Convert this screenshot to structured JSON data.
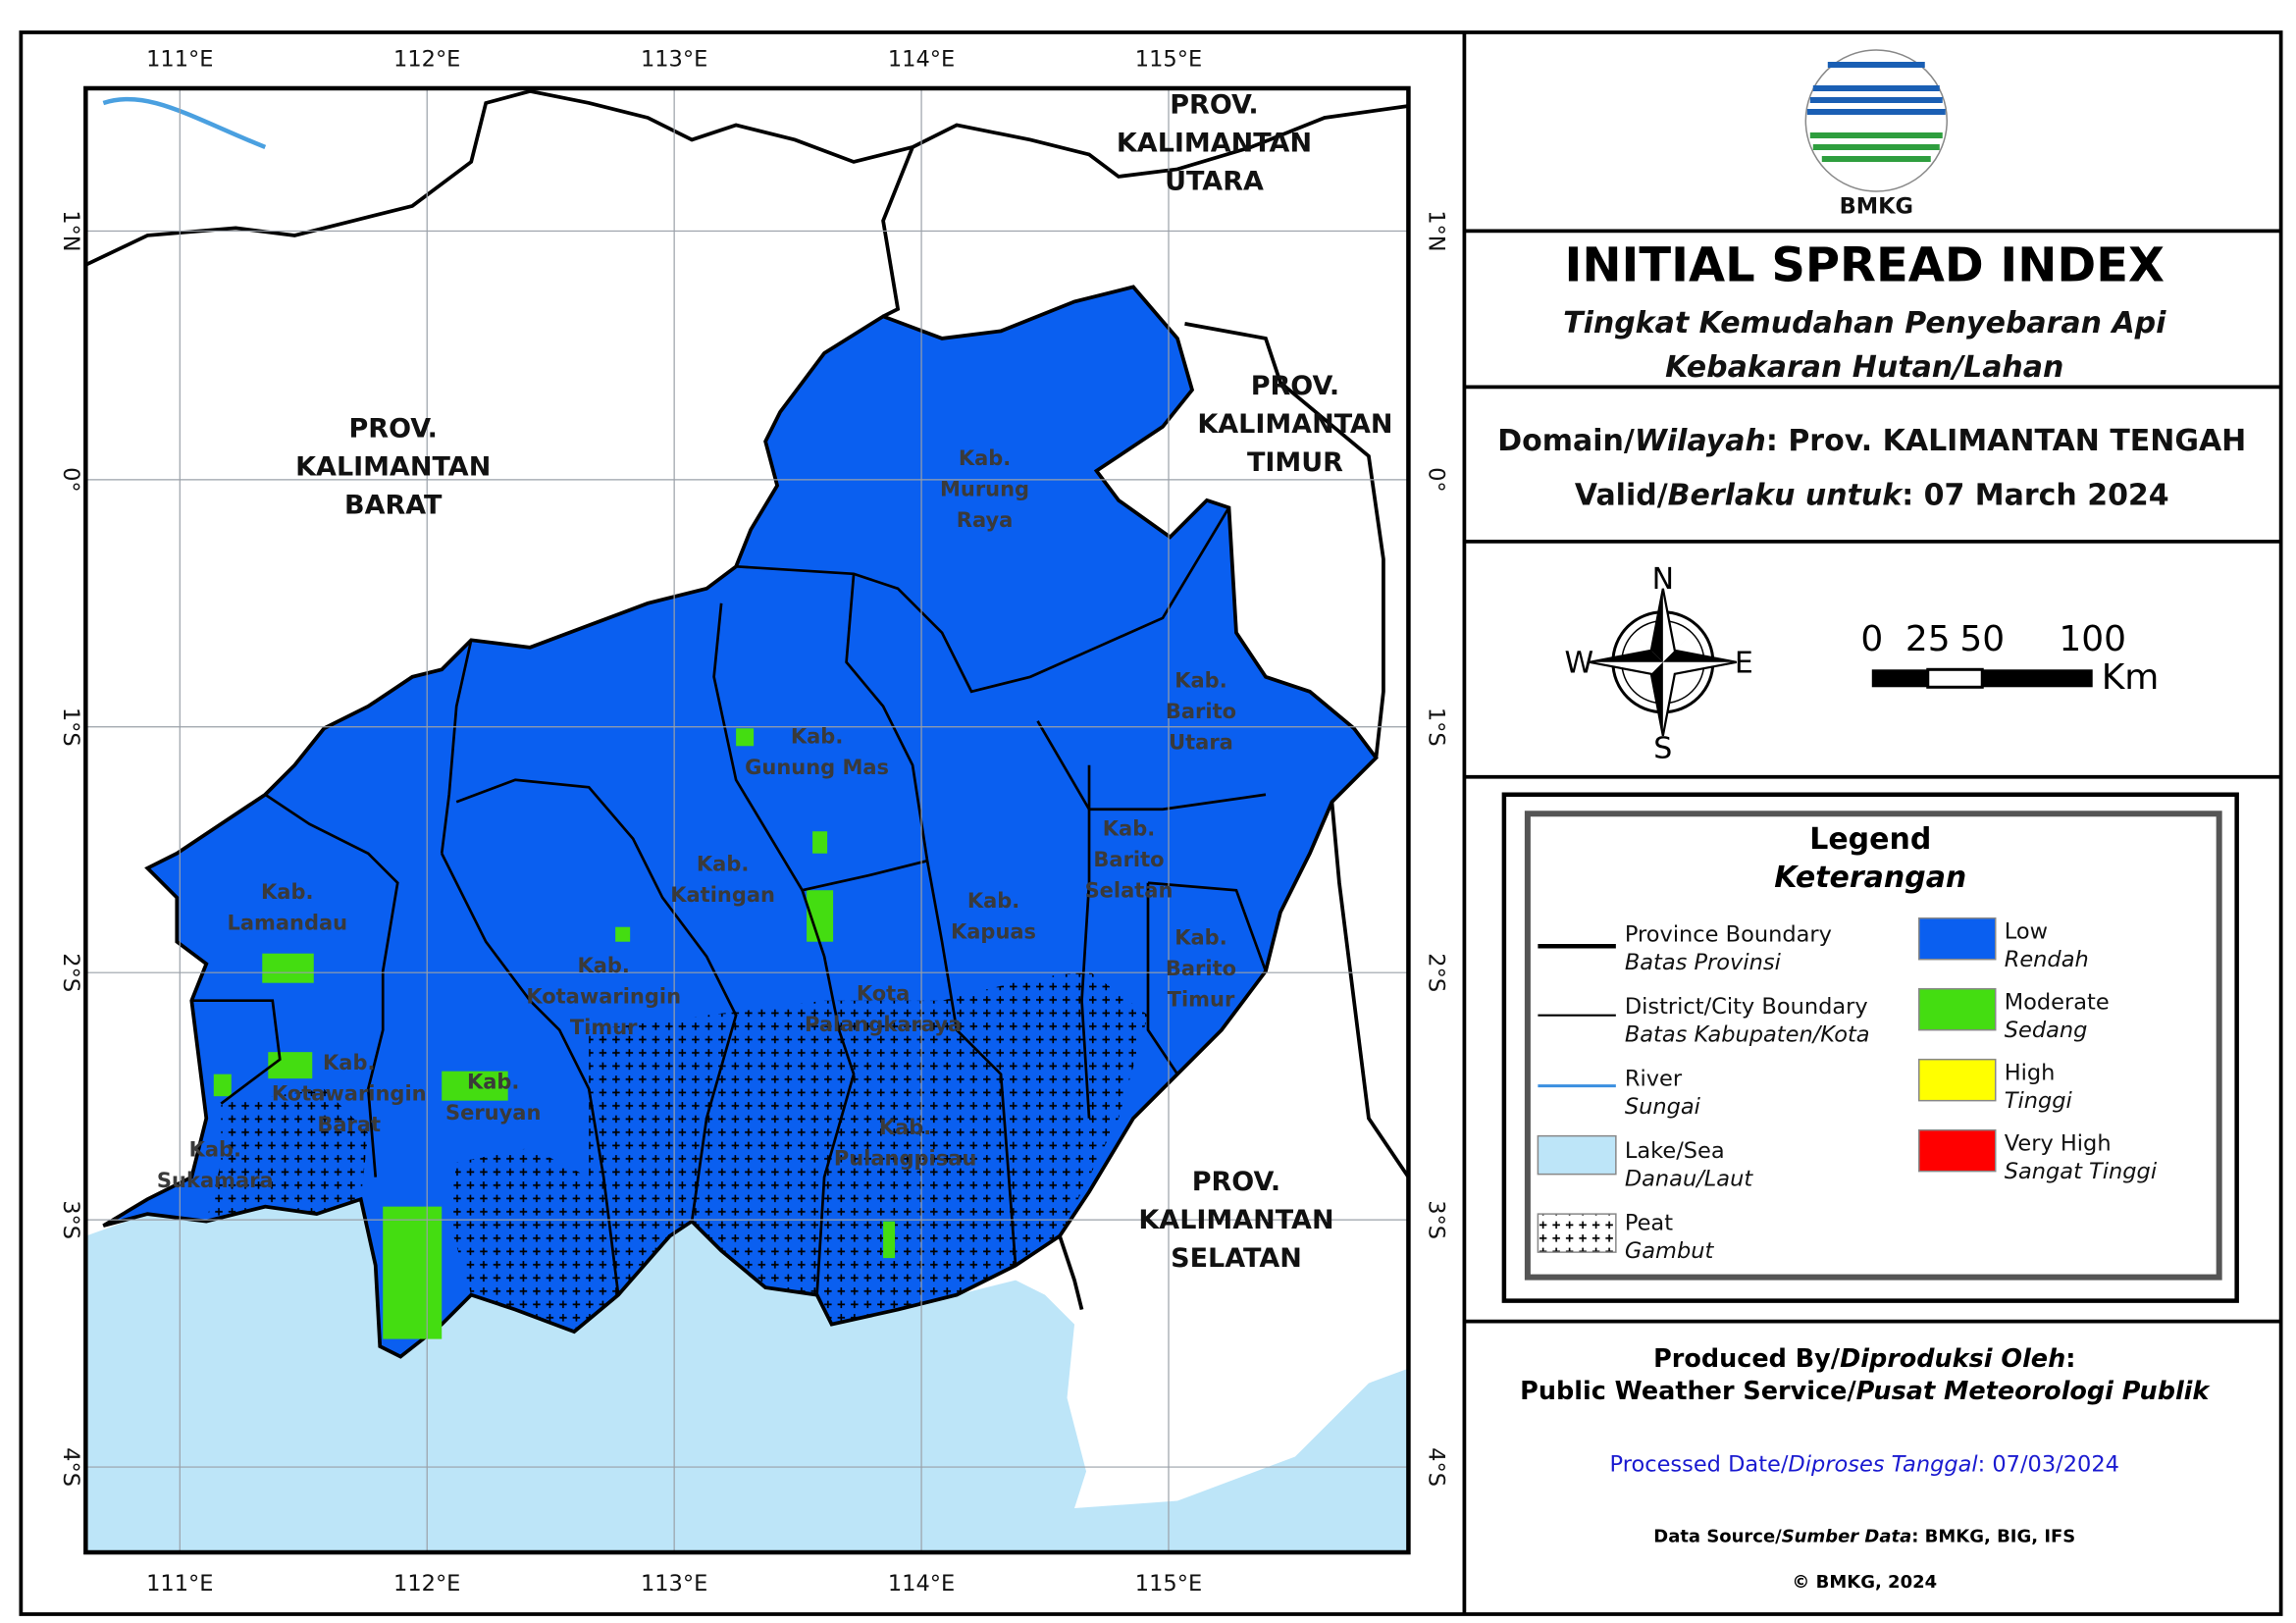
{
  "map": {
    "lon_labels": [
      "111°E",
      "112°E",
      "113°E",
      "114°E",
      "115°E"
    ],
    "lat_labels": [
      "1°N",
      "0°",
      "1°S",
      "2°S",
      "3°S",
      "4°S"
    ],
    "provinces": [
      [
        "PROV.",
        "KALIMANTAN",
        "UTARA"
      ],
      [
        "PROV.",
        "KALIMANTAN",
        "BARAT"
      ],
      [
        "PROV.",
        "KALIMANTAN",
        "TIMUR"
      ],
      [
        "PROV.",
        "KALIMANTAN",
        "SELATAN"
      ]
    ],
    "districts": [
      [
        "Kab.",
        "Murung",
        "Raya"
      ],
      [
        "Kab.",
        "Gunung Mas"
      ],
      [
        "Kab.",
        "Barito",
        "Utara"
      ],
      [
        "Kab.",
        "Lamandau"
      ],
      [
        "Kab.",
        "Katingan"
      ],
      [
        "Kab.",
        "Kapuas"
      ],
      [
        "Kab.",
        "Barito",
        "Selatan"
      ],
      [
        "Kab.",
        "Barito",
        "Timur"
      ],
      [
        "Kab.",
        "Kotawaringin",
        "Timur"
      ],
      [
        "Kota",
        "Palangkaraya"
      ],
      [
        "Kab.",
        "Kotawaringin",
        "Barat"
      ],
      [
        "Kab.",
        "Seruyan"
      ],
      [
        "Kab.",
        "Sukamara"
      ],
      [
        "Kab.",
        "Pulangpisau"
      ]
    ]
  },
  "header": {
    "logo_text": "BMKG",
    "title": "INITIAL SPREAD INDEX",
    "subtitle": [
      "Tingkat Kemudahan Penyebaran Api",
      "Kebakaran Hutan/Lahan"
    ]
  },
  "info": {
    "domain": [
      "Domain/",
      "Wilayah",
      ": Prov. KALIMANTAN TENGAH"
    ],
    "valid": [
      "Valid/",
      "Berlaku untuk",
      ": 07 March 2024"
    ]
  },
  "compass": {
    "n": "N",
    "s": "S",
    "e": "E",
    "w": "W"
  },
  "scale_bar": {
    "labels": [
      "0",
      "25",
      "50",
      "100"
    ],
    "unit": "Km"
  },
  "legend": {
    "title": "Legend",
    "subtitle": "Keterangan",
    "items": [
      {
        "label": "Province Boundary",
        "label_id": "Batas Provinsi"
      },
      {
        "label": "District/City Boundary",
        "label_id": "Batas Kabupaten/Kota"
      },
      {
        "label": "River",
        "label_id": "Sungai"
      },
      {
        "label": "Lake/Sea",
        "label_id": "Danau/Laut"
      },
      {
        "label": "Peat",
        "label_id": "Gambut"
      },
      {
        "label": "Low",
        "label_id": "Rendah",
        "color": "#0a5ff0"
      },
      {
        "label": "Moderate",
        "label_id": "Sedang",
        "color": "#44dd11"
      },
      {
        "label": "High",
        "label_id": "Tinggi",
        "color": "#ffff00"
      },
      {
        "label": "Very High",
        "label_id": "Sangat Tinggi",
        "color": "#ff0000"
      }
    ]
  },
  "footer": {
    "produced": [
      "Produced By/",
      "Diproduksi Oleh",
      ":"
    ],
    "service": [
      "Public Weather Service/",
      "Pusat Meteorologi Publik"
    ],
    "processed": [
      "Processed Date/",
      "Diproses Tanggal",
      ": 07/03/2024"
    ],
    "source": [
      "Data Source/",
      "Sumber Data",
      ": BMKG, BIG, IFS"
    ],
    "copyright": "© BMKG, 2024"
  }
}
